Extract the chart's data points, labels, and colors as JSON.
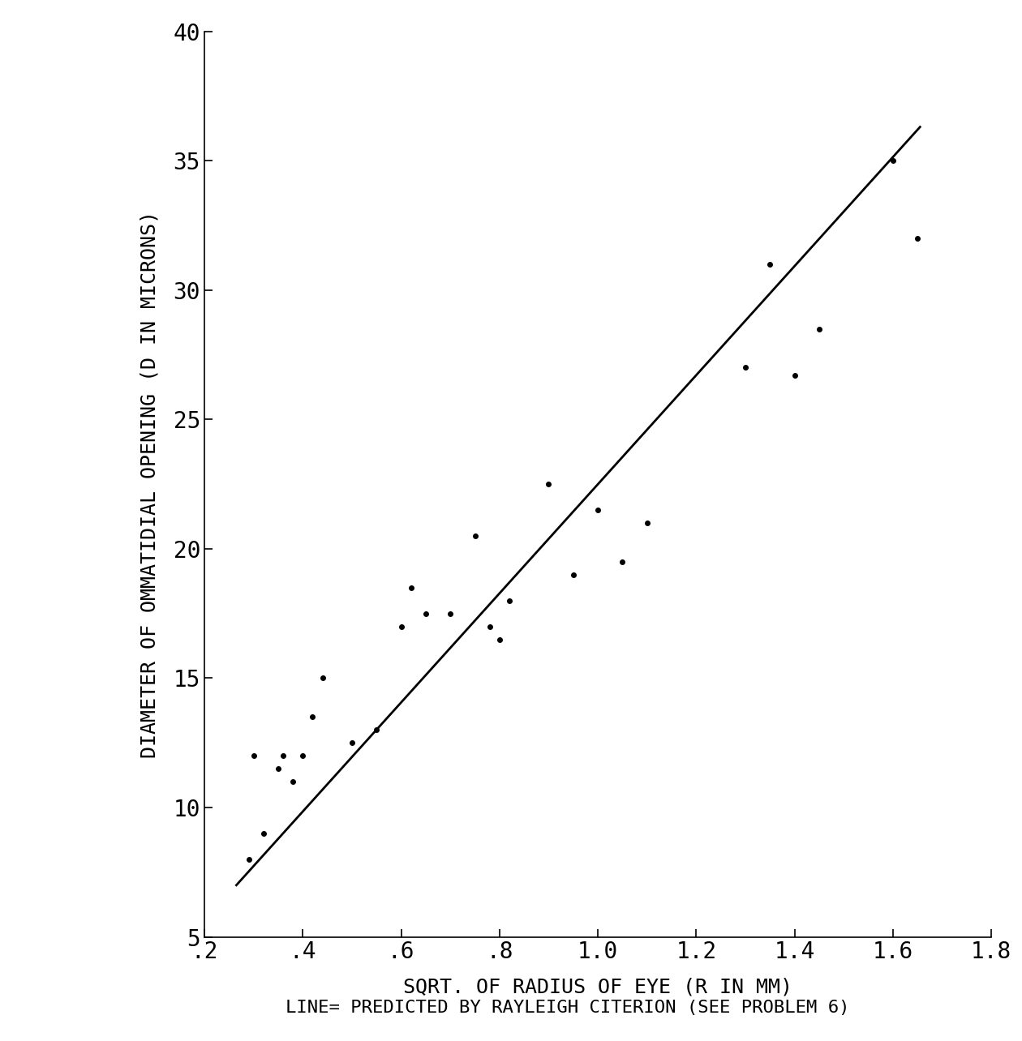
{
  "x_data": [
    0.29,
    0.3,
    0.32,
    0.35,
    0.36,
    0.38,
    0.4,
    0.42,
    0.44,
    0.5,
    0.55,
    0.6,
    0.62,
    0.65,
    0.7,
    0.75,
    0.78,
    0.8,
    0.82,
    0.9,
    0.95,
    1.0,
    1.05,
    1.1,
    1.3,
    1.35,
    1.4,
    1.45,
    1.6,
    1.65
  ],
  "y_data": [
    8.0,
    12.0,
    9.0,
    11.5,
    12.0,
    11.0,
    12.0,
    13.5,
    15.0,
    12.5,
    13.0,
    17.0,
    18.5,
    17.5,
    17.5,
    20.5,
    17.0,
    16.5,
    18.0,
    22.5,
    19.0,
    21.5,
    19.5,
    21.0,
    27.0,
    31.0,
    26.7,
    28.5,
    35.0,
    32.0
  ],
  "line_x": [
    0.265,
    1.655
  ],
  "line_y": [
    7.0,
    36.3
  ],
  "xlabel": "SQRT. OF RADIUS OF EYE (R IN MM)",
  "ylabel": "DIAMETER OF OMMATIDIAL OPENING (D IN MICRONS)",
  "caption": "LINE= PREDICTED BY RAYLEIGH CITERION (SEE PROBLEM 6)",
  "xlim": [
    0.2,
    1.8
  ],
  "ylim": [
    5,
    40
  ],
  "xticks": [
    0.2,
    0.4,
    0.6,
    0.8,
    1.0,
    1.2,
    1.4,
    1.6,
    1.8
  ],
  "xticklabels": [
    ".2",
    ".4",
    ".6",
    ".8",
    "1.0",
    "1.2",
    "1.4",
    "1.6",
    "1.8"
  ],
  "yticks": [
    5,
    10,
    15,
    20,
    25,
    30,
    35,
    40
  ],
  "background_color": "#ffffff",
  "point_color": "#000000",
  "line_color": "#000000",
  "point_size": 4,
  "line_width": 2.0,
  "tick_fontsize": 20,
  "label_fontsize": 18,
  "caption_fontsize": 16
}
